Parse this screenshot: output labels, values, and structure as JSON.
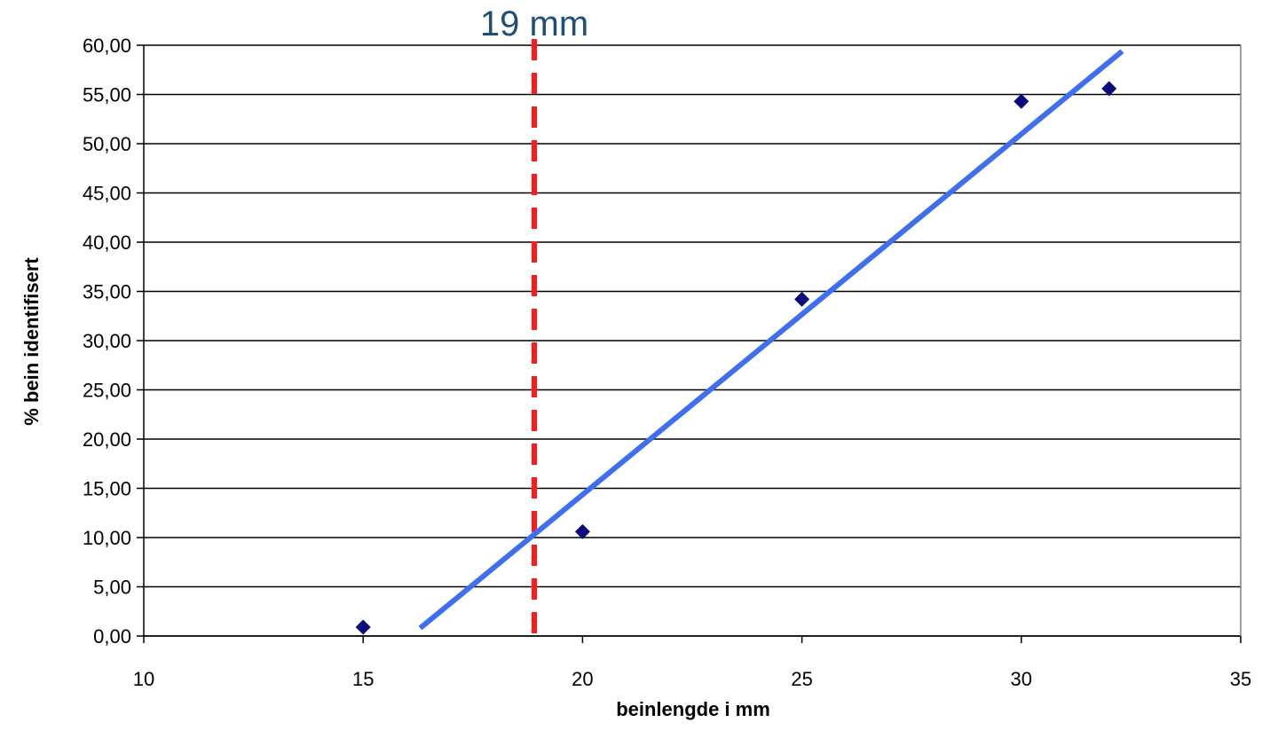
{
  "chart_data": {
    "type": "scatter",
    "title": "",
    "xlabel": "beinlengde i mm",
    "ylabel": "% bein identifisert",
    "xlim": [
      10,
      35
    ],
    "ylim": [
      0,
      60
    ],
    "x_ticks": [
      "10",
      "15",
      "20",
      "25",
      "30",
      "35"
    ],
    "y_ticks": [
      "0,00",
      "5,00",
      "10,00",
      "15,00",
      "20,00",
      "25,00",
      "30,00",
      "35,00",
      "40,00",
      "45,00",
      "50,00",
      "55,00",
      "60,00"
    ],
    "grid": "horizontal",
    "series": [
      {
        "points": [
          {
            "x": 15,
            "y": 0.9
          },
          {
            "x": 20,
            "y": 10.6
          },
          {
            "x": 25,
            "y": 34.2
          },
          {
            "x": 30,
            "y": 54.3
          },
          {
            "x": 32,
            "y": 55.6
          }
        ],
        "marker": "diamond",
        "color": "#0a0a7a"
      }
    ],
    "trendline": {
      "x_start": 16.3,
      "y_start": 0.8,
      "x_end": 32.3,
      "y_end": 59.4,
      "color": "#3d6ff0"
    },
    "reference_line": {
      "x": 18.9,
      "label": "19 mm",
      "color": "#ff1a1a",
      "style": "dashed",
      "label_color": "#1f4e79"
    },
    "legend": "none"
  }
}
